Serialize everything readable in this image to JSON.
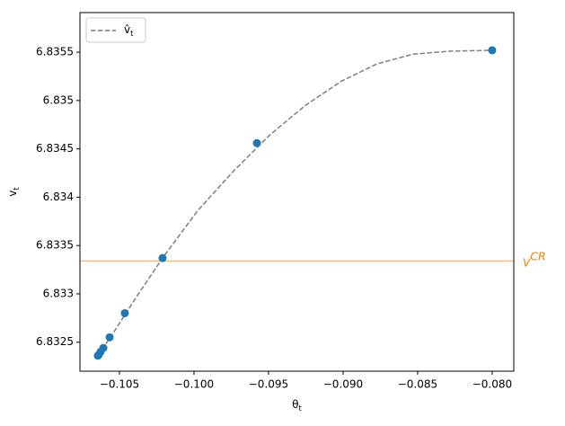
{
  "chart_data": {
    "type": "line",
    "x_label": {
      "base": "θ",
      "sub": "t"
    },
    "y_label": {
      "base": "v",
      "sub": "t"
    },
    "series": [
      {
        "name": {
          "base": "v̂",
          "sub": "t"
        },
        "color": "#7f7f7f",
        "style": "dashed",
        "x": [
          -0.10645,
          -0.10548,
          -0.10398,
          -0.10211,
          -0.09976,
          -0.09735,
          -0.09494,
          -0.09253,
          -0.09012,
          -0.08771,
          -0.0853,
          -0.08289,
          -0.08
        ],
        "values": [
          6.83236,
          6.83258,
          6.83294,
          6.83337,
          6.83386,
          6.83427,
          6.83464,
          6.83495,
          6.8352,
          6.83538,
          6.83548,
          6.83551,
          6.83552
        ]
      },
      {
        "color": "#1f77b4",
        "style": "scatter",
        "x": [
          -0.08,
          -0.09578,
          -0.10211,
          -0.10464,
          -0.10566,
          -0.10608,
          -0.10627,
          -0.10639,
          -0.10645
        ],
        "values": [
          6.83552,
          6.83456,
          6.83337,
          6.8328,
          6.83255,
          6.83244,
          6.8324,
          6.83237,
          6.83236
        ]
      }
    ],
    "hline": {
      "value": 6.83334,
      "color": "#ffbb78",
      "label": {
        "base": "V",
        "sup": "CR"
      },
      "label_color": "#ff7f0e"
    },
    "xlim": [
      -0.10765,
      -0.07855
    ],
    "ylim": [
      6.8322,
      6.83591
    ],
    "xticks": [
      {
        "value": -0.105,
        "label": "−0.105"
      },
      {
        "value": -0.1,
        "label": "−0.100"
      },
      {
        "value": -0.095,
        "label": "−0.095"
      },
      {
        "value": -0.09,
        "label": "−0.090"
      },
      {
        "value": -0.085,
        "label": "−0.085"
      },
      {
        "value": -0.08,
        "label": "−0.080"
      }
    ],
    "yticks": [
      6.8325,
      6.833,
      6.8335,
      6.834,
      6.8345,
      6.835,
      6.8355
    ],
    "legend": "upper left"
  }
}
